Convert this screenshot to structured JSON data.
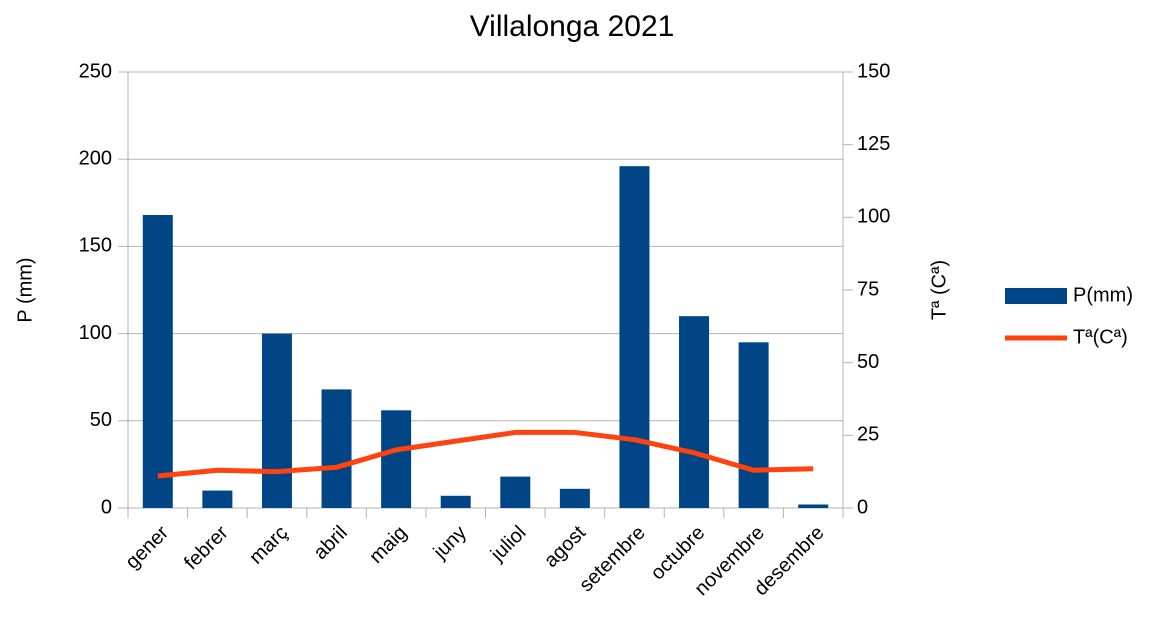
{
  "chart_data": {
    "type": "bar",
    "title": "Villalonga 2021",
    "categories": [
      "gener",
      "febrer",
      "març",
      "abril",
      "maig",
      "juny",
      "juliol",
      "agost",
      "setembre",
      "octubre",
      "novembre",
      "desembre"
    ],
    "series": [
      {
        "name": "P(mm)",
        "type": "bar",
        "color": "#004586",
        "values": [
          168,
          10,
          100,
          68,
          56,
          7,
          18,
          11,
          196,
          110,
          95,
          2
        ]
      },
      {
        "name": "Tª(Cª)",
        "type": "line",
        "axis": "y2",
        "color": "#ff420e",
        "values": [
          11,
          13,
          12.5,
          14,
          20,
          23,
          26,
          26,
          23.5,
          19,
          13,
          13.5
        ]
      }
    ],
    "ylabel": "P (mm)",
    "y2label": "Tª (Cª)",
    "ylim": [
      0,
      250
    ],
    "yticks": [
      0,
      50,
      100,
      150,
      200,
      250
    ],
    "y2lim": [
      0,
      150
    ],
    "y2ticks": [
      0,
      25,
      50,
      75,
      100,
      125,
      150
    ],
    "grid": true,
    "legend": "right"
  }
}
